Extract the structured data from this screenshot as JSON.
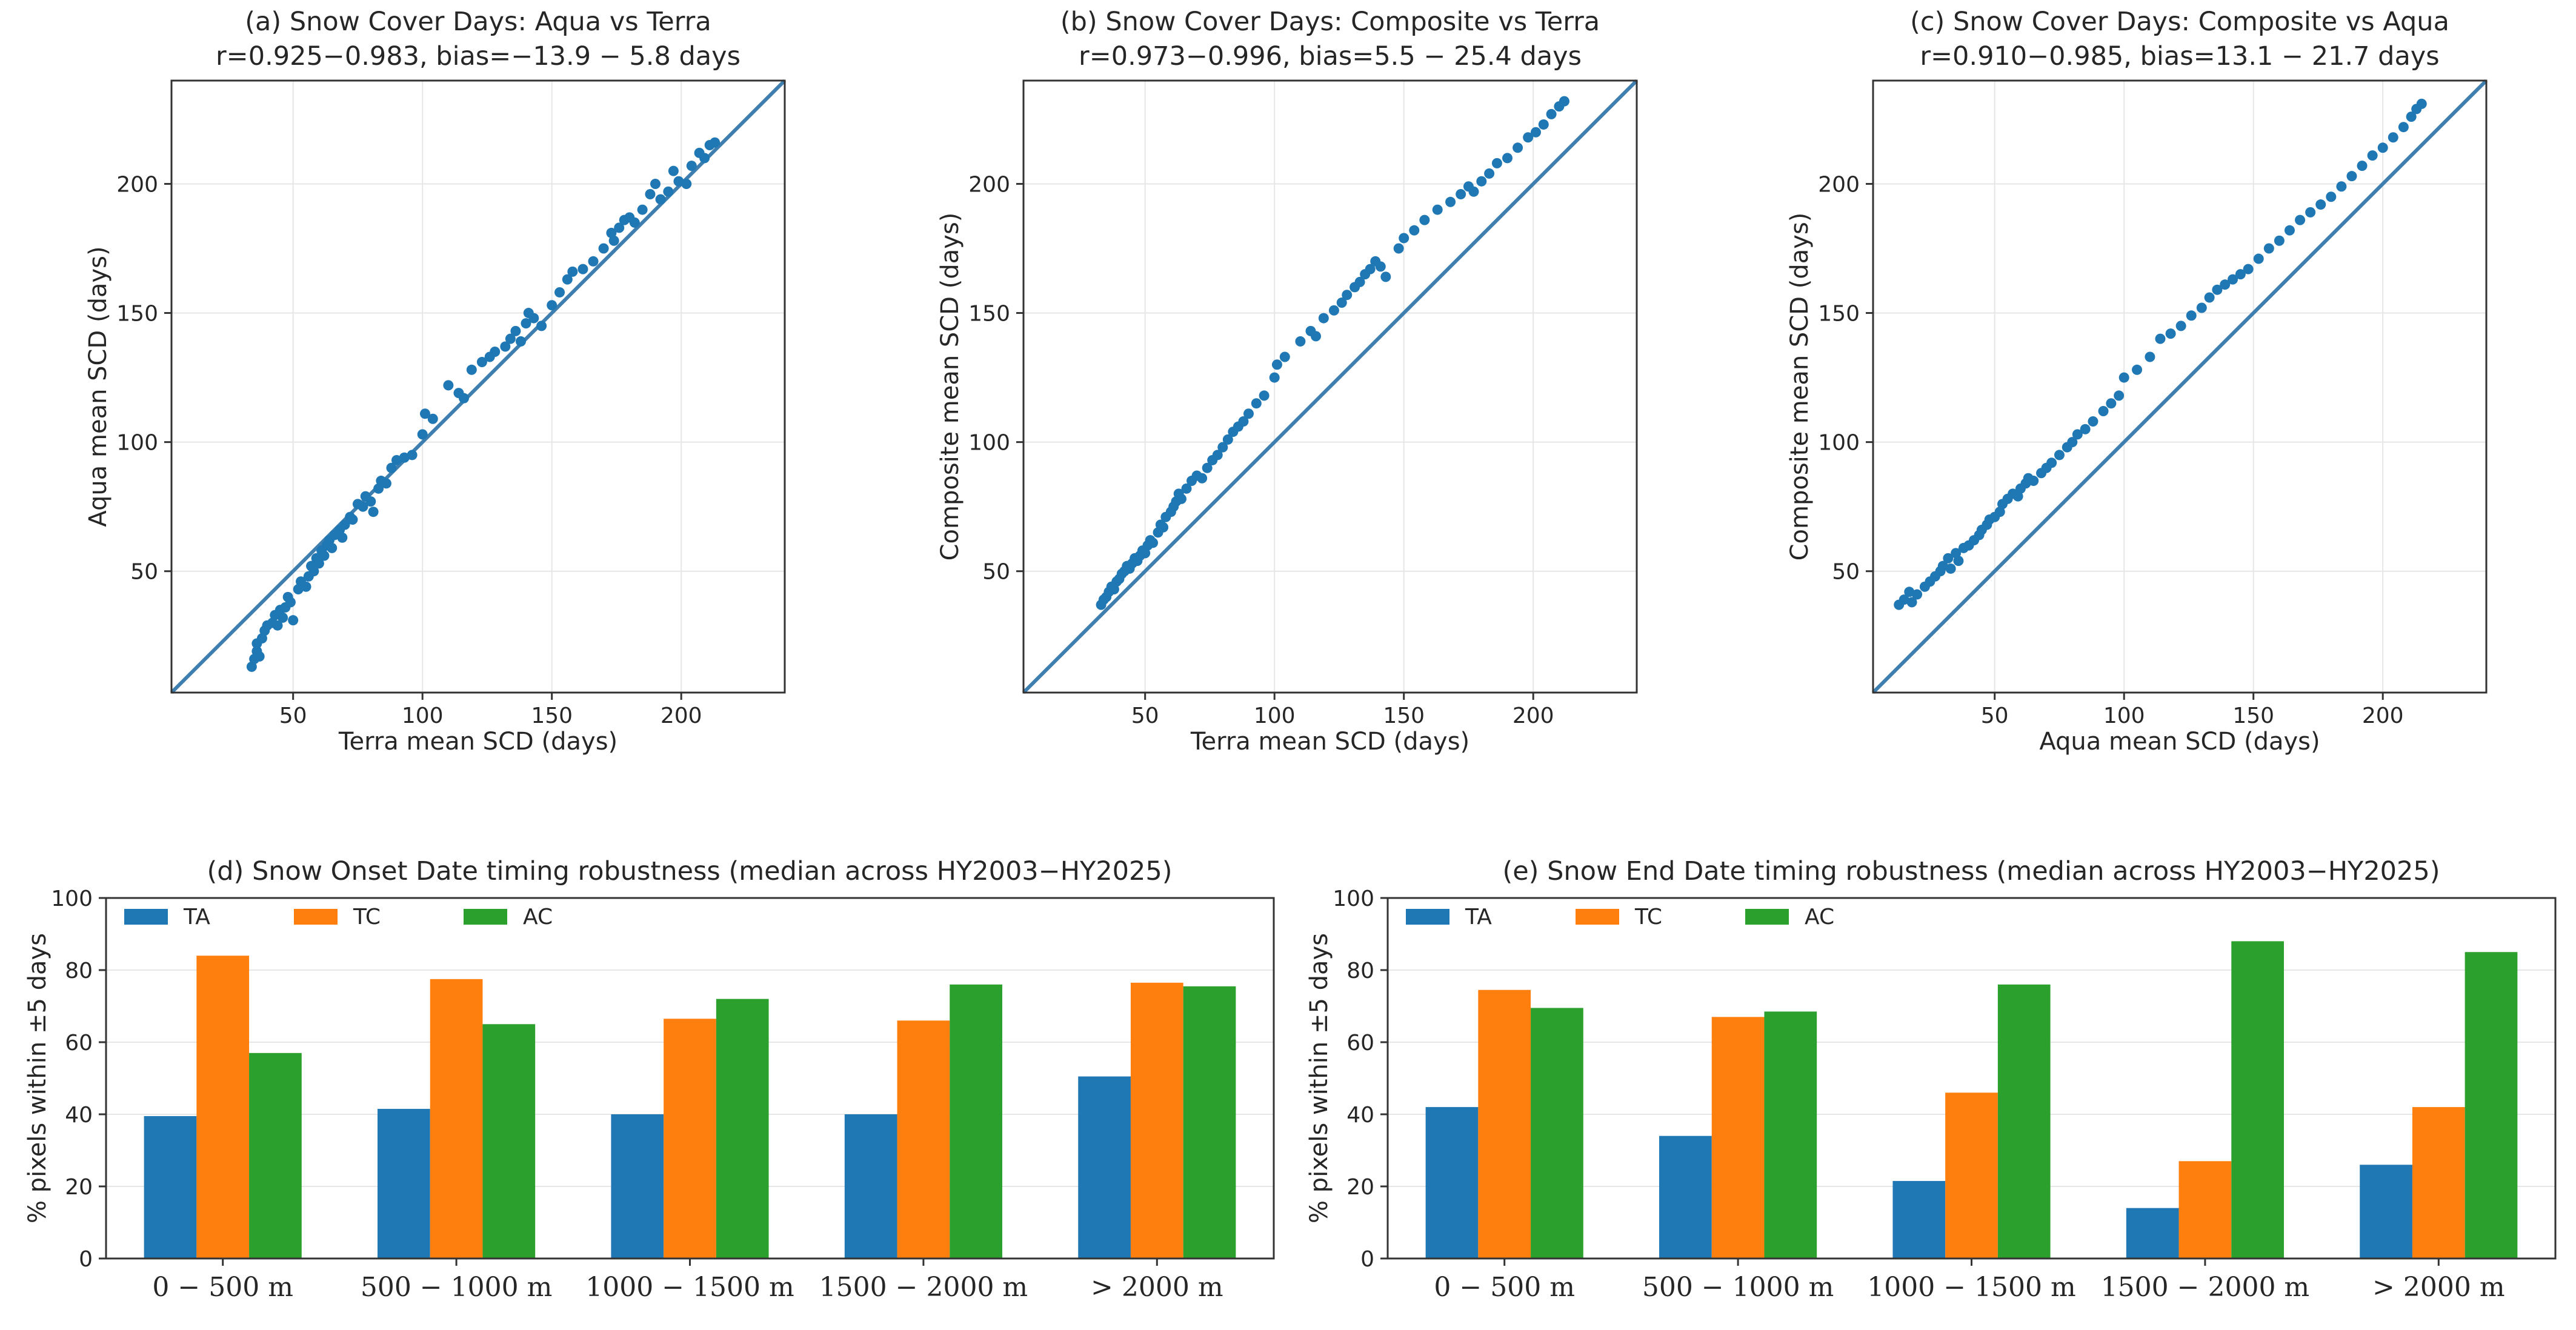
{
  "chart_data": [
    {
      "type": "scatter",
      "id": "a",
      "title": "(a) Snow Cover Days: Aqua vs Terra",
      "subtitle": "r=0.925−0.983, bias=−13.9 − 5.8 days",
      "xlabel": "Terra mean SCD (days)",
      "ylabel": "Aqua mean SCD (days)",
      "xlim": [
        3,
        240
      ],
      "ylim": [
        3,
        240
      ],
      "xticks": [
        50,
        100,
        150,
        200
      ],
      "yticks": [
        50,
        100,
        150,
        200
      ],
      "identity_line": true,
      "grid": true,
      "points": [
        [
          34,
          13
        ],
        [
          35,
          16
        ],
        [
          36,
          19
        ],
        [
          37,
          17
        ],
        [
          36,
          22
        ],
        [
          38,
          24
        ],
        [
          39,
          27
        ],
        [
          40,
          29
        ],
        [
          42,
          30
        ],
        [
          43,
          33
        ],
        [
          44,
          29
        ],
        [
          45,
          35
        ],
        [
          46,
          32
        ],
        [
          47,
          36
        ],
        [
          48,
          40
        ],
        [
          49,
          38
        ],
        [
          50,
          31
        ],
        [
          52,
          43
        ],
        [
          53,
          46
        ],
        [
          55,
          44
        ],
        [
          56,
          48
        ],
        [
          57,
          52
        ],
        [
          58,
          50
        ],
        [
          59,
          55
        ],
        [
          60,
          53
        ],
        [
          61,
          58
        ],
        [
          62,
          56
        ],
        [
          63,
          60
        ],
        [
          64,
          62
        ],
        [
          65,
          59
        ],
        [
          66,
          64
        ],
        [
          68,
          66
        ],
        [
          69,
          63
        ],
        [
          70,
          68
        ],
        [
          72,
          71
        ],
        [
          73,
          70
        ],
        [
          75,
          76
        ],
        [
          77,
          75
        ],
        [
          78,
          79
        ],
        [
          80,
          77
        ],
        [
          81,
          73
        ],
        [
          83,
          82
        ],
        [
          84,
          85
        ],
        [
          86,
          84
        ],
        [
          88,
          90
        ],
        [
          90,
          93
        ],
        [
          93,
          94
        ],
        [
          96,
          95
        ],
        [
          100,
          103
        ],
        [
          101,
          111
        ],
        [
          104,
          109
        ],
        [
          110,
          122
        ],
        [
          114,
          119
        ],
        [
          116,
          117
        ],
        [
          119,
          128
        ],
        [
          123,
          131
        ],
        [
          126,
          133
        ],
        [
          128,
          135
        ],
        [
          132,
          137
        ],
        [
          134,
          140
        ],
        [
          136,
          143
        ],
        [
          138,
          139
        ],
        [
          140,
          146
        ],
        [
          141,
          150
        ],
        [
          143,
          148
        ],
        [
          146,
          145
        ],
        [
          150,
          153
        ],
        [
          153,
          158
        ],
        [
          156,
          163
        ],
        [
          158,
          166
        ],
        [
          162,
          167
        ],
        [
          166,
          170
        ],
        [
          170,
          175
        ],
        [
          173,
          181
        ],
        [
          174,
          178
        ],
        [
          176,
          183
        ],
        [
          178,
          186
        ],
        [
          180,
          187
        ],
        [
          182,
          185
        ],
        [
          185,
          190
        ],
        [
          188,
          196
        ],
        [
          190,
          200
        ],
        [
          192,
          194
        ],
        [
          195,
          197
        ],
        [
          197,
          205
        ],
        [
          199,
          201
        ],
        [
          202,
          200
        ],
        [
          204,
          207
        ],
        [
          207,
          212
        ],
        [
          209,
          210
        ],
        [
          211,
          215
        ],
        [
          213,
          216
        ]
      ]
    },
    {
      "type": "scatter",
      "id": "b",
      "title": "(b) Snow Cover Days: Composite vs Terra",
      "subtitle": "r=0.973−0.996, bias=5.5 − 25.4 days",
      "xlabel": "Terra mean SCD (days)",
      "ylabel": "Composite mean SCD (days)",
      "xlim": [
        3,
        240
      ],
      "ylim": [
        3,
        240
      ],
      "xticks": [
        50,
        100,
        150,
        200
      ],
      "yticks": [
        50,
        100,
        150,
        200
      ],
      "identity_line": true,
      "grid": true,
      "points": [
        [
          33,
          37
        ],
        [
          34,
          39
        ],
        [
          35,
          40
        ],
        [
          36,
          42
        ],
        [
          37,
          44
        ],
        [
          38,
          43
        ],
        [
          39,
          46
        ],
        [
          40,
          47
        ],
        [
          41,
          49
        ],
        [
          42,
          50
        ],
        [
          43,
          52
        ],
        [
          44,
          51
        ],
        [
          45,
          53
        ],
        [
          46,
          55
        ],
        [
          47,
          54
        ],
        [
          48,
          56
        ],
        [
          49,
          58
        ],
        [
          50,
          57
        ],
        [
          51,
          60
        ],
        [
          52,
          62
        ],
        [
          53,
          61
        ],
        [
          55,
          65
        ],
        [
          56,
          68
        ],
        [
          57,
          67
        ],
        [
          58,
          71
        ],
        [
          60,
          73
        ],
        [
          61,
          75
        ],
        [
          62,
          77
        ],
        [
          63,
          80
        ],
        [
          64,
          78
        ],
        [
          66,
          82
        ],
        [
          68,
          85
        ],
        [
          70,
          87
        ],
        [
          72,
          86
        ],
        [
          74,
          90
        ],
        [
          76,
          93
        ],
        [
          78,
          95
        ],
        [
          80,
          98
        ],
        [
          82,
          101
        ],
        [
          84,
          104
        ],
        [
          86,
          106
        ],
        [
          88,
          108
        ],
        [
          90,
          111
        ],
        [
          93,
          115
        ],
        [
          96,
          118
        ],
        [
          100,
          125
        ],
        [
          101,
          130
        ],
        [
          104,
          133
        ],
        [
          110,
          139
        ],
        [
          114,
          143
        ],
        [
          116,
          141
        ],
        [
          119,
          148
        ],
        [
          123,
          151
        ],
        [
          126,
          154
        ],
        [
          128,
          157
        ],
        [
          131,
          160
        ],
        [
          133,
          162
        ],
        [
          135,
          165
        ],
        [
          137,
          167
        ],
        [
          139,
          170
        ],
        [
          141,
          168
        ],
        [
          143,
          164
        ],
        [
          148,
          175
        ],
        [
          150,
          179
        ],
        [
          154,
          182
        ],
        [
          158,
          186
        ],
        [
          163,
          190
        ],
        [
          168,
          193
        ],
        [
          172,
          196
        ],
        [
          175,
          199
        ],
        [
          177,
          197
        ],
        [
          180,
          201
        ],
        [
          183,
          204
        ],
        [
          186,
          208
        ],
        [
          190,
          210
        ],
        [
          194,
          214
        ],
        [
          198,
          218
        ],
        [
          201,
          220
        ],
        [
          204,
          223
        ],
        [
          207,
          227
        ],
        [
          210,
          230
        ],
        [
          212,
          232
        ]
      ]
    },
    {
      "type": "scatter",
      "id": "c",
      "title": "(c) Snow Cover Days: Composite vs Aqua",
      "subtitle": "r=0.910−0.985, bias=13.1 − 21.7 days",
      "xlabel": "Aqua mean SCD (days)",
      "ylabel": "Composite mean SCD (days)",
      "xlim": [
        3,
        240
      ],
      "ylim": [
        3,
        240
      ],
      "xticks": [
        50,
        100,
        150,
        200
      ],
      "yticks": [
        50,
        100,
        150,
        200
      ],
      "identity_line": true,
      "grid": true,
      "points": [
        [
          13,
          37
        ],
        [
          15,
          39
        ],
        [
          17,
          42
        ],
        [
          18,
          38
        ],
        [
          20,
          41
        ],
        [
          23,
          44
        ],
        [
          25,
          46
        ],
        [
          27,
          48
        ],
        [
          29,
          50
        ],
        [
          30,
          52
        ],
        [
          32,
          55
        ],
        [
          33,
          51
        ],
        [
          35,
          57
        ],
        [
          36,
          54
        ],
        [
          38,
          59
        ],
        [
          40,
          60
        ],
        [
          42,
          62
        ],
        [
          44,
          64
        ],
        [
          45,
          66
        ],
        [
          47,
          68
        ],
        [
          48,
          70
        ],
        [
          50,
          71
        ],
        [
          52,
          73
        ],
        [
          53,
          76
        ],
        [
          55,
          78
        ],
        [
          57,
          80
        ],
        [
          59,
          79
        ],
        [
          60,
          82
        ],
        [
          62,
          84
        ],
        [
          63,
          86
        ],
        [
          65,
          85
        ],
        [
          68,
          88
        ],
        [
          70,
          90
        ],
        [
          72,
          92
        ],
        [
          75,
          95
        ],
        [
          78,
          98
        ],
        [
          80,
          100
        ],
        [
          82,
          103
        ],
        [
          85,
          105
        ],
        [
          88,
          108
        ],
        [
          92,
          112
        ],
        [
          95,
          115
        ],
        [
          98,
          118
        ],
        [
          100,
          125
        ],
        [
          105,
          128
        ],
        [
          110,
          133
        ],
        [
          114,
          140
        ],
        [
          118,
          142
        ],
        [
          122,
          145
        ],
        [
          126,
          149
        ],
        [
          130,
          152
        ],
        [
          133,
          156
        ],
        [
          136,
          159
        ],
        [
          139,
          161
        ],
        [
          142,
          163
        ],
        [
          145,
          165
        ],
        [
          148,
          167
        ],
        [
          152,
          171
        ],
        [
          156,
          175
        ],
        [
          160,
          178
        ],
        [
          164,
          182
        ],
        [
          168,
          186
        ],
        [
          172,
          189
        ],
        [
          176,
          192
        ],
        [
          180,
          195
        ],
        [
          184,
          199
        ],
        [
          188,
          203
        ],
        [
          192,
          207
        ],
        [
          196,
          211
        ],
        [
          200,
          214
        ],
        [
          204,
          218
        ],
        [
          208,
          222
        ],
        [
          211,
          226
        ],
        [
          213,
          229
        ],
        [
          215,
          231
        ]
      ]
    },
    {
      "type": "bar",
      "id": "d",
      "title": "(d) Snow Onset Date timing robustness (median across HY2003−HY2025)",
      "xlabel": "",
      "ylabel": "% pixels within ±5 days",
      "ylim": [
        0,
        100
      ],
      "yticks": [
        0,
        20,
        40,
        60,
        80,
        100
      ],
      "legend_position": "top-left",
      "categories": [
        "0 − 500 m",
        "500 − 1000 m",
        "1000 − 1500 m",
        "1500 − 2000 m",
        "> 2000 m"
      ],
      "series": [
        {
          "name": "TA",
          "color": "#1f77b4",
          "values": [
            39.5,
            41.5,
            40.0,
            40.0,
            50.5
          ]
        },
        {
          "name": "TC",
          "color": "#ff7f0e",
          "values": [
            84.0,
            77.5,
            66.5,
            66.0,
            76.5
          ]
        },
        {
          "name": "AC",
          "color": "#2ca02c",
          "values": [
            57.0,
            65.0,
            72.0,
            76.0,
            75.5
          ]
        }
      ]
    },
    {
      "type": "bar",
      "id": "e",
      "title": "(e) Snow End Date timing robustness (median across HY2003−HY2025)",
      "xlabel": "",
      "ylabel": "% pixels within ±5 days",
      "ylim": [
        0,
        100
      ],
      "yticks": [
        0,
        20,
        40,
        60,
        80,
        100
      ],
      "legend_position": "top-left",
      "categories": [
        "0 − 500 m",
        "500 − 1000 m",
        "1000 − 1500 m",
        "1500 − 2000 m",
        "> 2000 m"
      ],
      "series": [
        {
          "name": "TA",
          "color": "#1f77b4",
          "values": [
            42.0,
            34.0,
            21.5,
            14.0,
            26.0
          ]
        },
        {
          "name": "TC",
          "color": "#ff7f0e",
          "values": [
            74.5,
            67.0,
            46.0,
            27.0,
            42.0
          ]
        },
        {
          "name": "AC",
          "color": "#2ca02c",
          "values": [
            69.5,
            68.5,
            76.0,
            88.0,
            85.0
          ]
        }
      ]
    }
  ],
  "colors": {
    "point": "#1f77b4",
    "identity_line": "#3f7fb0",
    "grid": "#e6e6e6",
    "axes": "#333333"
  }
}
